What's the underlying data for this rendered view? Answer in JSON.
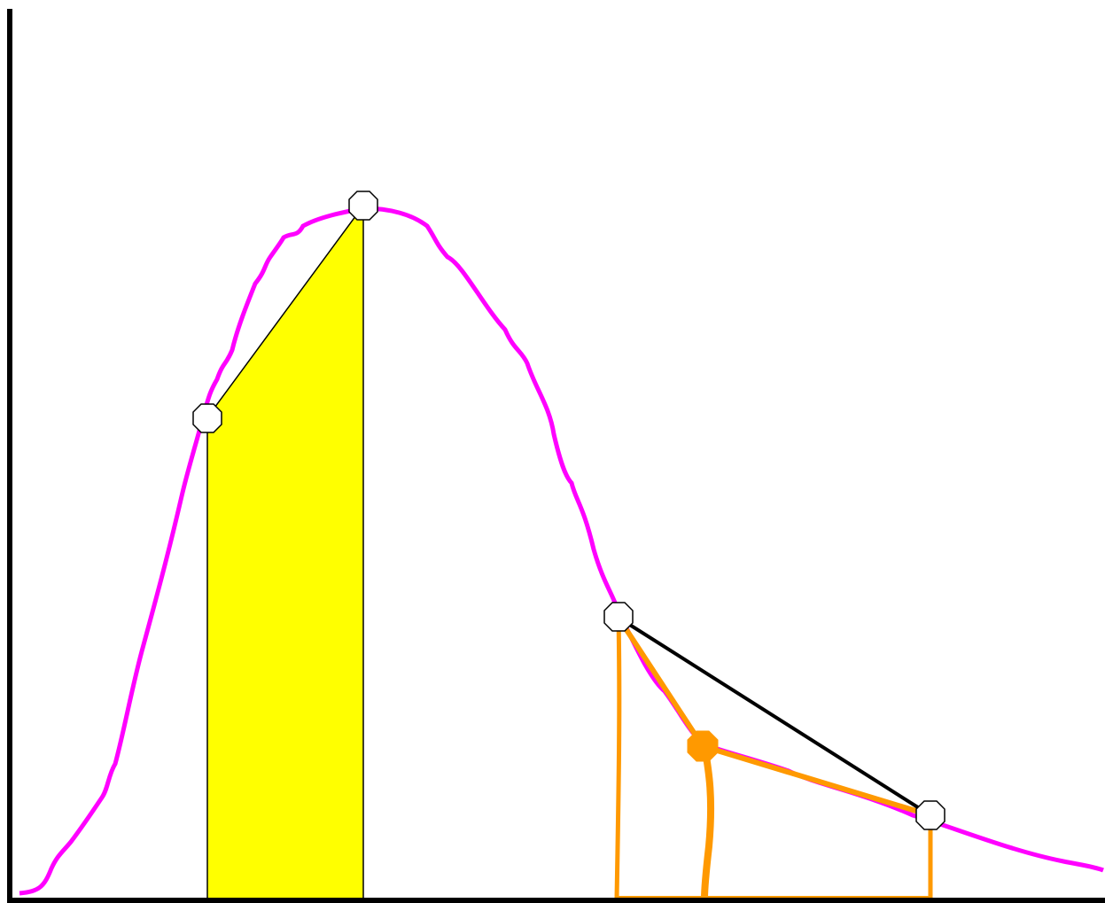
{
  "colors": {
    "background": "#ffffff",
    "axis": "#000000",
    "curve": "#ff00ff",
    "yellow_fill": "#ffff00",
    "orange": "#ff9900",
    "chord": "#000000",
    "marker_fill": "#ffffff",
    "marker_stroke": "#000000"
  },
  "diagram": {
    "description_visible_text": ""
  }
}
